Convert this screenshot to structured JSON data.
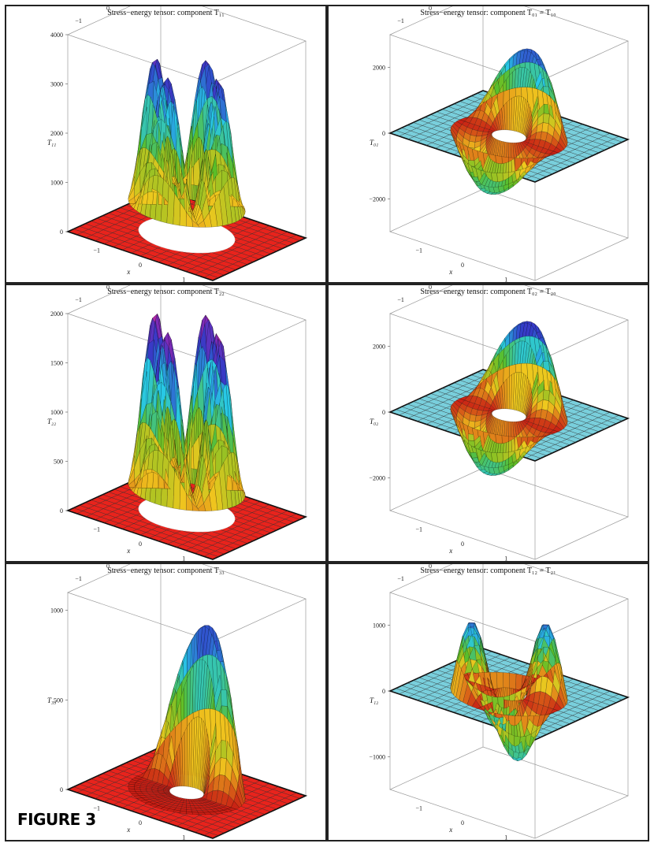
{
  "figure_label": "FIGURE 3",
  "colors": {
    "plane_positive": "#e8231c",
    "plane_signed": "#79cfdc",
    "grid_line": "#333333",
    "box_line": "#888888"
  },
  "chart_data": [
    {
      "type": "surface3d",
      "title": "Stress−energy tensor: component T₁₁",
      "xlabel": "x",
      "ylabel": "ρ",
      "zlabel": "T₁₁",
      "x_ticks": [
        "−1",
        "0",
        "1"
      ],
      "y_ticks": [
        "−1",
        "0",
        "1"
      ],
      "z_ticks": [
        {
          "v": 0,
          "label": "0"
        },
        {
          "v": 1000,
          "label": "1000"
        },
        {
          "v": 2000,
          "label": "2000"
        },
        {
          "v": 3000,
          "label": "3000"
        },
        {
          "v": 4000,
          "label": "4000"
        }
      ],
      "zlim": [
        0,
        4000
      ],
      "signed": false,
      "plane": "red",
      "surface": {
        "mode": "valley",
        "peaks": 4,
        "peak_value": 3400,
        "base_value": 600
      }
    },
    {
      "type": "surface3d",
      "title": "Stress−energy tensor: component T₀₁ = T₁₀",
      "xlabel": "x",
      "ylabel": "ρ",
      "zlabel": "T₀₁",
      "x_ticks": [
        "−1",
        "0",
        "1"
      ],
      "y_ticks": [
        "−1",
        "0",
        "1"
      ],
      "z_ticks": [
        {
          "v": -2000,
          "label": "−2000"
        },
        {
          "v": 0,
          "label": "0"
        },
        {
          "v": 2000,
          "label": "2000"
        }
      ],
      "zlim": [
        -3000,
        3000
      ],
      "signed": true,
      "plane": "cyan",
      "surface": {
        "mode": "lobes",
        "peaks": 2,
        "peak_value": 2400,
        "trough_value": -2100
      }
    },
    {
      "type": "surface3d",
      "title": "Stress−energy tensor: component T₂₂",
      "xlabel": "x",
      "ylabel": "ρ",
      "zlabel": "T₂₂",
      "x_ticks": [
        "−1",
        "0",
        "1"
      ],
      "y_ticks": [
        "−1",
        "0",
        "1"
      ],
      "z_ticks": [
        {
          "v": 0,
          "label": "0"
        },
        {
          "v": 500,
          "label": "500"
        },
        {
          "v": 1000,
          "label": "1000"
        },
        {
          "v": 1500,
          "label": "1500"
        },
        {
          "v": 2000,
          "label": "2000"
        }
      ],
      "zlim": [
        0,
        2000
      ],
      "signed": false,
      "plane": "red",
      "surface": {
        "mode": "valley",
        "peaks": 4,
        "peak_value": 1950,
        "base_value": 250
      }
    },
    {
      "type": "surface3d",
      "title": "Stress−energy tensor: component T₀₂ = T₂₀",
      "xlabel": "x",
      "ylabel": "ρ",
      "zlabel": "T₀₂",
      "x_ticks": [
        "−1",
        "0",
        "1"
      ],
      "y_ticks": [
        "−1",
        "0",
        "1"
      ],
      "z_ticks": [
        {
          "v": -2000,
          "label": "−2000"
        },
        {
          "v": 0,
          "label": "0"
        },
        {
          "v": 2000,
          "label": "2000"
        }
      ],
      "zlim": [
        -3000,
        3000
      ],
      "signed": true,
      "plane": "cyan",
      "surface": {
        "mode": "lobes",
        "peaks": 2,
        "peak_value": 2600,
        "trough_value": -2200
      }
    },
    {
      "type": "surface3d",
      "title": "Stress−energy tensor: component T₃₃",
      "xlabel": "x",
      "ylabel": "ρ",
      "zlabel": "T₃₃",
      "x_ticks": [
        "−1",
        "0",
        "1"
      ],
      "y_ticks": [
        "−1",
        "0",
        "1"
      ],
      "z_ticks": [
        {
          "v": 0,
          "label": "0"
        },
        {
          "v": 500,
          "label": "500"
        },
        {
          "v": 1000,
          "label": "1000"
        }
      ],
      "zlim": [
        0,
        1100
      ],
      "signed": false,
      "plane": "red",
      "surface": {
        "mode": "lobes",
        "peaks": 2,
        "peak_value": 900,
        "trough_value": 0
      }
    },
    {
      "type": "surface3d",
      "title": "Stress−energy tensor: component T₁₂ = T₂₁",
      "xlabel": "x",
      "ylabel": "ρ",
      "zlabel": "T₁₂",
      "x_ticks": [
        "−1",
        "0",
        "1"
      ],
      "y_ticks": [
        "−1",
        "0",
        "1"
      ],
      "z_ticks": [
        {
          "v": -1000,
          "label": "−1000"
        },
        {
          "v": 0,
          "label": "0"
        },
        {
          "v": 1000,
          "label": "1000"
        }
      ],
      "zlim": [
        -1500,
        1500
      ],
      "signed": true,
      "plane": "cyan",
      "surface": {
        "mode": "lobes",
        "peaks": 4,
        "peak_value": 1100,
        "trough_value": -1150
      }
    }
  ]
}
